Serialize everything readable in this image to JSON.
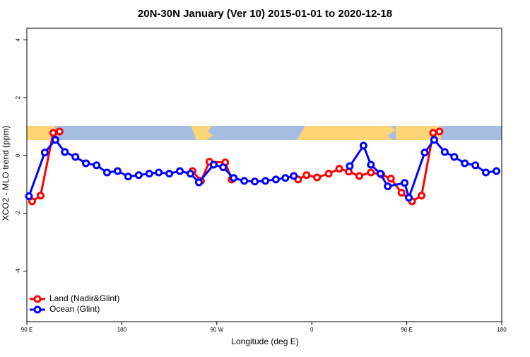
{
  "chart_data": {
    "type": "line",
    "title": "20N-30N January (Ver 10)   2015-01-01 to 2020-12-18",
    "x_label": "Longitude (deg E)",
    "y_label": "XCO2 - MLO trend (ppm)",
    "xlim": [
      90,
      540
    ],
    "xticks": [
      {
        "value": 90,
        "label": "90 E"
      },
      180,
      {
        "value": 270,
        "label": "90 W"
      },
      {
        "value": 360,
        "label": "0"
      },
      {
        "value": 450,
        "label": "90 E"
      },
      {
        "value": 540,
        "label": "180"
      }
    ],
    "ylim": [
      -5.75,
      4.4
    ],
    "yticks": [
      -4,
      -2,
      0,
      2,
      4
    ],
    "legend": "bottom-left",
    "series": [
      {
        "name": "Land (Nadir&Glint)",
        "color": "#ff0000",
        "x": [
          95,
          103,
          115,
          121,
          200,
          247,
          255,
          263,
          278,
          284,
          320,
          347,
          355,
          365,
          376,
          386,
          395,
          405,
          416,
          426,
          435,
          445,
          455,
          464,
          475,
          481
        ],
        "values": [
          -1.59,
          -1.39,
          0.78,
          0.83,
          null,
          -0.54,
          -0.88,
          -0.22,
          -0.24,
          -0.83,
          null,
          -0.83,
          -0.68,
          -0.76,
          -0.63,
          -0.46,
          -0.56,
          -0.71,
          -0.59,
          -0.66,
          -0.8,
          -1.29,
          -1.59,
          -1.39,
          0.78,
          0.83
        ]
      },
      {
        "name": "Ocean (Glint)",
        "color": "#0000ff",
        "x": [
          92,
          107,
          117,
          126,
          136,
          146,
          156,
          166,
          176,
          186,
          196,
          206,
          215,
          225,
          235,
          245,
          253,
          267,
          276,
          286,
          296,
          306,
          316,
          326,
          335,
          343,
          370,
          396,
          409,
          416,
          425,
          432,
          448,
          452,
          467,
          476,
          486,
          495,
          505,
          515,
          525,
          535
        ],
        "values": [
          -1.41,
          0.1,
          0.54,
          0.12,
          -0.05,
          -0.27,
          -0.34,
          -0.59,
          -0.54,
          -0.73,
          -0.68,
          -0.63,
          -0.59,
          -0.63,
          -0.54,
          -0.63,
          -0.93,
          -0.32,
          -0.41,
          -0.78,
          -0.88,
          -0.9,
          -0.88,
          -0.83,
          -0.78,
          -0.71,
          null,
          -0.37,
          0.34,
          -0.32,
          -0.63,
          -1.07,
          -0.95,
          -1.46,
          0.1,
          0.54,
          0.12,
          -0.05,
          -0.27,
          -0.34,
          -0.59,
          -0.54
        ]
      }
    ]
  }
}
